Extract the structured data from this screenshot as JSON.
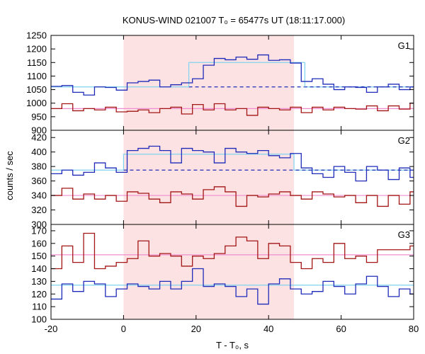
{
  "title": "KONUS-WIND 021007 T₀ = 65477s UT (18:11:17.000)",
  "ylabel": "counts / sec",
  "xlabel": "T - T₀, s",
  "colors": {
    "background_band": "#fde2e4",
    "upper_series": "#1f2bb8",
    "lower_series": "#a31616",
    "fit_cyan": "#7fd3f0",
    "fit_pink": "#f08ccf"
  },
  "chart_data": [
    {
      "type": "line",
      "panel": "G1",
      "xlim": [
        -20,
        80
      ],
      "ylim": [
        900,
        1250
      ],
      "yticks": [
        900,
        950,
        1000,
        1050,
        1100,
        1150,
        1200,
        1250
      ],
      "shaded_interval": [
        0,
        47
      ],
      "step_edges": [
        -20,
        -17,
        -14,
        -11,
        -8,
        -5,
        -2,
        1,
        4,
        7,
        10,
        13,
        16,
        19,
        22,
        25,
        28,
        31,
        34,
        37,
        40,
        43,
        46,
        49,
        52,
        55,
        58,
        61,
        64,
        67,
        70,
        73,
        76,
        79,
        80
      ],
      "series": [
        {
          "color": "upper",
          "values": [
            1062,
            1065,
            1040,
            1030,
            1060,
            1058,
            1048,
            1075,
            1080,
            1085,
            1060,
            1068,
            1075,
            1090,
            1140,
            1165,
            1160,
            1170,
            1162,
            1178,
            1158,
            1160,
            1148,
            1080,
            1090,
            1070,
            1050,
            1060,
            1058,
            1040,
            1060,
            1070,
            1050,
            1060
          ]
        },
        {
          "color": "lower",
          "values": [
            980,
            998,
            972,
            980,
            975,
            985,
            968,
            970,
            975,
            965,
            980,
            985,
            960,
            995,
            975,
            998,
            975,
            980,
            955,
            985,
            980,
            975,
            985,
            965,
            985,
            975,
            985,
            980,
            978,
            990,
            972,
            990,
            978,
            1000
          ]
        }
      ],
      "fits": [
        {
          "color": "cyan",
          "x": [
            -20,
            18
          ],
          "y": 1060
        },
        {
          "color": "cyan",
          "x": [
            18,
            50
          ],
          "y": 1150
        },
        {
          "color": "cyan",
          "x": [
            50,
            80
          ],
          "y": 1060
        },
        {
          "color": "upper",
          "style": "dashed",
          "x": [
            18,
            80
          ],
          "y": 1060
        },
        {
          "color": "pink",
          "x": [
            -20,
            80
          ],
          "y": 980
        }
      ],
      "label": "G1"
    },
    {
      "type": "line",
      "panel": "G2",
      "xlim": [
        -20,
        80
      ],
      "ylim": [
        300,
        430
      ],
      "yticks": [
        300,
        320,
        340,
        360,
        380,
        400,
        420
      ],
      "shaded_interval": [
        0,
        47
      ],
      "step_edges": [
        -20,
        -17,
        -14,
        -11,
        -8,
        -5,
        -2,
        1,
        4,
        7,
        10,
        13,
        16,
        19,
        22,
        25,
        28,
        31,
        34,
        37,
        40,
        43,
        46,
        49,
        52,
        55,
        58,
        61,
        64,
        67,
        70,
        73,
        76,
        79,
        80
      ],
      "series": [
        {
          "color": "upper",
          "values": [
            370,
            375,
            368,
            372,
            385,
            378,
            372,
            402,
            405,
            408,
            402,
            385,
            405,
            402,
            400,
            385,
            405,
            400,
            398,
            402,
            395,
            392,
            398,
            378,
            370,
            365,
            380,
            372,
            360,
            380,
            375,
            362,
            378,
            365
          ]
        },
        {
          "color": "lower",
          "values": [
            340,
            350,
            335,
            342,
            335,
            340,
            332,
            345,
            343,
            335,
            330,
            345,
            342,
            335,
            348,
            352,
            345,
            325,
            340,
            338,
            342,
            345,
            340,
            335,
            345,
            342,
            338,
            340,
            330,
            340,
            325,
            340,
            328,
            345
          ]
        }
      ],
      "fits": [
        {
          "color": "cyan",
          "x": [
            -20,
            0
          ],
          "y": 375
        },
        {
          "color": "cyan",
          "x": [
            0,
            47
          ],
          "y": 397
        },
        {
          "color": "cyan",
          "x": [
            47,
            80
          ],
          "y": 375
        },
        {
          "color": "upper",
          "style": "dashed",
          "x": [
            0,
            80
          ],
          "y": 375
        },
        {
          "color": "pink",
          "x": [
            -20,
            80
          ],
          "y": 340
        }
      ],
      "label": "G2"
    },
    {
      "type": "line",
      "panel": "G3",
      "xlim": [
        -20,
        80
      ],
      "ylim": [
        100,
        175
      ],
      "yticks": [
        100,
        110,
        120,
        130,
        140,
        150,
        160,
        170
      ],
      "shaded_interval": [
        0,
        47
      ],
      "step_edges": [
        -20,
        -17,
        -14,
        -11,
        -8,
        -5,
        -2,
        1,
        4,
        7,
        10,
        13,
        16,
        19,
        22,
        25,
        28,
        31,
        34,
        37,
        40,
        43,
        46,
        49,
        52,
        55,
        58,
        61,
        64,
        67,
        70,
        73,
        76,
        79,
        80
      ],
      "series": [
        {
          "color": "upper",
          "values": [
            116,
            128,
            122,
            130,
            128,
            118,
            124,
            128,
            126,
            124,
            130,
            124,
            130,
            140,
            126,
            128,
            126,
            118,
            124,
            112,
            128,
            132,
            124,
            120,
            122,
            130,
            126,
            120,
            128,
            134,
            126,
            118,
            124,
            120
          ]
        },
        {
          "color": "lower",
          "values": [
            140,
            158,
            145,
            168,
            140,
            142,
            145,
            148,
            162,
            150,
            152,
            150,
            142,
            150,
            148,
            152,
            158,
            165,
            162,
            148,
            160,
            158,
            145,
            140,
            148,
            145,
            160,
            148,
            150,
            145,
            155,
            155,
            155,
            158
          ]
        }
      ],
      "fits": [
        {
          "color": "cyan",
          "x": [
            -20,
            80
          ],
          "y": 127
        },
        {
          "color": "pink",
          "x": [
            -20,
            80
          ],
          "y": 151
        }
      ],
      "label": "G3"
    }
  ],
  "xaxis": {
    "xlim": [
      -20,
      80
    ],
    "ticks": [
      -20,
      0,
      20,
      40,
      60,
      80
    ]
  }
}
